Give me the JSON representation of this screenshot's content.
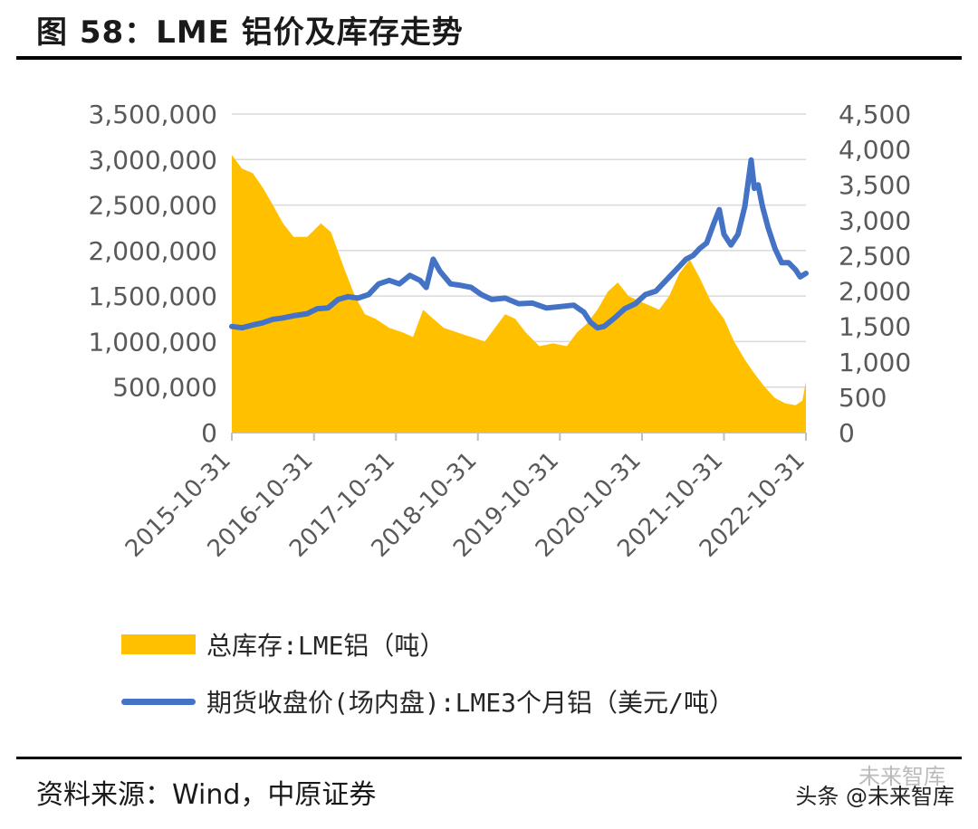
{
  "header": {
    "title": "图 58：LME 铝价及库存走势"
  },
  "footer": {
    "source": "资料来源：Wind，中原证券",
    "watermark": "头条 @未来智库",
    "watermark_ghost": "未来智库"
  },
  "colors": {
    "inventory": "#ffc000",
    "price": "#4472c4",
    "grid": "#d9d9d9",
    "axis": "#bfbfbf"
  },
  "chart_data": {
    "type": "area+line",
    "x_ticks": [
      "2015-10-31",
      "2016-10-31",
      "2017-10-31",
      "2018-10-31",
      "2019-10-31",
      "2020-10-31",
      "2021-10-31",
      "2022-10-31"
    ],
    "x_range": [
      "2015-10-31",
      "2022-10-31"
    ],
    "y_left": {
      "ticks": [
        "0",
        "500,000",
        "1,000,000",
        "1,500,000",
        "2,000,000",
        "2,500,000",
        "3,000,000",
        "3,500,000"
      ],
      "range": [
        0,
        3500000
      ]
    },
    "y_right": {
      "ticks": [
        "0",
        "500",
        "1,000",
        "1,500",
        "2,000",
        "2,500",
        "3,000",
        "3,500",
        "4,000",
        "4,500"
      ],
      "range": [
        0,
        4500
      ]
    },
    "grid": true,
    "legend_position": "bottom",
    "series": [
      {
        "name": "总库存:LME铝（吨）",
        "type": "area",
        "axis": "left",
        "points": [
          [
            "2015-10-31",
            3050000
          ],
          [
            "2015-12-15",
            2900000
          ],
          [
            "2016-02-01",
            2850000
          ],
          [
            "2016-03-15",
            2700000
          ],
          [
            "2016-05-01",
            2500000
          ],
          [
            "2016-06-15",
            2300000
          ],
          [
            "2016-08-01",
            2150000
          ],
          [
            "2016-10-01",
            2150000
          ],
          [
            "2016-12-01",
            2300000
          ],
          [
            "2017-01-15",
            2200000
          ],
          [
            "2017-03-15",
            1800000
          ],
          [
            "2017-05-01",
            1500000
          ],
          [
            "2017-06-15",
            1300000
          ],
          [
            "2017-08-01",
            1250000
          ],
          [
            "2017-10-01",
            1150000
          ],
          [
            "2017-12-01",
            1100000
          ],
          [
            "2018-01-15",
            1050000
          ],
          [
            "2018-03-01",
            1350000
          ],
          [
            "2018-04-15",
            1250000
          ],
          [
            "2018-06-01",
            1150000
          ],
          [
            "2018-08-01",
            1100000
          ],
          [
            "2018-10-01",
            1050000
          ],
          [
            "2018-12-01",
            1000000
          ],
          [
            "2019-01-15",
            1150000
          ],
          [
            "2019-03-01",
            1300000
          ],
          [
            "2019-04-15",
            1250000
          ],
          [
            "2019-06-01",
            1100000
          ],
          [
            "2019-08-01",
            950000
          ],
          [
            "2019-10-01",
            980000
          ],
          [
            "2019-12-01",
            950000
          ],
          [
            "2020-01-15",
            1100000
          ],
          [
            "2020-03-01",
            1200000
          ],
          [
            "2020-04-15",
            1350000
          ],
          [
            "2020-06-01",
            1550000
          ],
          [
            "2020-07-15",
            1650000
          ],
          [
            "2020-09-01",
            1500000
          ],
          [
            "2020-10-15",
            1450000
          ],
          [
            "2020-12-01",
            1400000
          ],
          [
            "2021-01-15",
            1350000
          ],
          [
            "2021-03-01",
            1500000
          ],
          [
            "2021-04-15",
            1750000
          ],
          [
            "2021-06-01",
            1900000
          ],
          [
            "2021-07-15",
            1700000
          ],
          [
            "2021-09-01",
            1450000
          ],
          [
            "2021-10-31",
            1250000
          ],
          [
            "2021-12-15",
            1000000
          ],
          [
            "2022-02-01",
            800000
          ],
          [
            "2022-03-15",
            650000
          ],
          [
            "2022-05-01",
            500000
          ],
          [
            "2022-06-15",
            380000
          ],
          [
            "2022-08-01",
            320000
          ],
          [
            "2022-09-15",
            300000
          ],
          [
            "2022-10-15",
            350000
          ],
          [
            "2022-10-31",
            560000
          ]
        ]
      },
      {
        "name": "期货收盘价(场内盘):LME3个月铝（美元/吨）",
        "type": "line",
        "axis": "right",
        "points": [
          [
            "2015-10-31",
            1500
          ],
          [
            "2015-12-15",
            1480
          ],
          [
            "2016-02-01",
            1520
          ],
          [
            "2016-03-15",
            1550
          ],
          [
            "2016-05-01",
            1600
          ],
          [
            "2016-06-15",
            1620
          ],
          [
            "2016-08-01",
            1650
          ],
          [
            "2016-10-01",
            1680
          ],
          [
            "2016-11-15",
            1750
          ],
          [
            "2017-01-01",
            1760
          ],
          [
            "2017-02-15",
            1880
          ],
          [
            "2017-04-01",
            1920
          ],
          [
            "2017-05-15",
            1900
          ],
          [
            "2017-07-01",
            1950
          ],
          [
            "2017-08-15",
            2100
          ],
          [
            "2017-10-01",
            2150
          ],
          [
            "2017-11-15",
            2100
          ],
          [
            "2018-01-01",
            2220
          ],
          [
            "2018-02-15",
            2150
          ],
          [
            "2018-03-15",
            2050
          ],
          [
            "2018-04-15",
            2450
          ],
          [
            "2018-05-15",
            2280
          ],
          [
            "2018-07-01",
            2100
          ],
          [
            "2018-08-15",
            2080
          ],
          [
            "2018-10-01",
            2050
          ],
          [
            "2018-11-15",
            1950
          ],
          [
            "2019-01-01",
            1880
          ],
          [
            "2019-03-01",
            1900
          ],
          [
            "2019-05-01",
            1820
          ],
          [
            "2019-07-01",
            1830
          ],
          [
            "2019-09-01",
            1760
          ],
          [
            "2019-11-01",
            1780
          ],
          [
            "2020-01-01",
            1800
          ],
          [
            "2020-02-15",
            1700
          ],
          [
            "2020-03-15",
            1560
          ],
          [
            "2020-04-15",
            1480
          ],
          [
            "2020-05-15",
            1500
          ],
          [
            "2020-07-01",
            1620
          ],
          [
            "2020-08-15",
            1750
          ],
          [
            "2020-10-01",
            1820
          ],
          [
            "2020-11-15",
            1950
          ],
          [
            "2021-01-01",
            2000
          ],
          [
            "2021-02-15",
            2150
          ],
          [
            "2021-04-01",
            2300
          ],
          [
            "2021-05-15",
            2450
          ],
          [
            "2021-06-15",
            2500
          ],
          [
            "2021-07-15",
            2600
          ],
          [
            "2021-08-15",
            2680
          ],
          [
            "2021-09-15",
            2950
          ],
          [
            "2021-10-10",
            3150
          ],
          [
            "2021-10-31",
            2800
          ],
          [
            "2021-12-01",
            2650
          ],
          [
            "2022-01-01",
            2800
          ],
          [
            "2022-02-01",
            3200
          ],
          [
            "2022-03-01",
            3850
          ],
          [
            "2022-03-15",
            3450
          ],
          [
            "2022-04-01",
            3500
          ],
          [
            "2022-04-20",
            3200
          ],
          [
            "2022-05-15",
            2900
          ],
          [
            "2022-06-15",
            2600
          ],
          [
            "2022-07-15",
            2400
          ],
          [
            "2022-08-15",
            2400
          ],
          [
            "2022-09-15",
            2300
          ],
          [
            "2022-10-05",
            2200
          ],
          [
            "2022-10-31",
            2250
          ]
        ]
      }
    ]
  }
}
